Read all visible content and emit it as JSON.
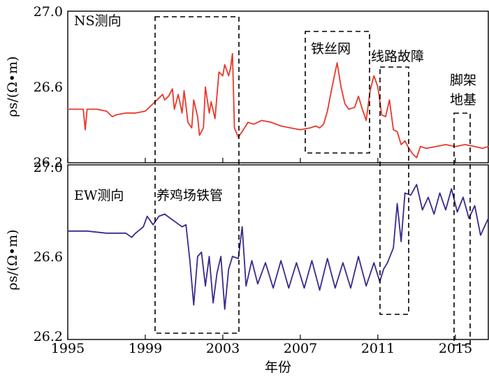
{
  "chart_data": {
    "type": "line",
    "xlabel": "年份",
    "x_ticks": [
      "1995",
      "1999",
      "2003",
      "2007",
      "2011",
      "2015"
    ],
    "xlim": [
      1995,
      2016.7
    ],
    "panels": [
      {
        "label": "NS测向",
        "ylabel": "ρs/(Ω•m)",
        "ylim": [
          26.2,
          27.0
        ],
        "y_ticks": [
          "27.0",
          "26.6",
          "26.2"
        ],
        "color": "#e8382a",
        "series": [
          {
            "points": [
              [
                1995.0,
                26.48
              ],
              [
                1995.5,
                26.48
              ],
              [
                1995.8,
                26.48
              ],
              [
                1995.9,
                26.37
              ],
              [
                1996.0,
                26.48
              ],
              [
                1996.5,
                26.48
              ],
              [
                1997.0,
                26.47
              ],
              [
                1997.3,
                26.44
              ],
              [
                1997.5,
                26.45
              ],
              [
                1998.0,
                26.46
              ],
              [
                1998.5,
                26.46
              ],
              [
                1999.0,
                26.47
              ],
              [
                1999.9,
                26.56
              ],
              [
                2000.0,
                26.53
              ],
              [
                2000.2,
                26.55
              ],
              [
                2000.4,
                26.59
              ],
              [
                2000.5,
                26.48
              ],
              [
                2000.7,
                26.56
              ],
              [
                2000.9,
                26.46
              ],
              [
                2001.0,
                26.58
              ],
              [
                2001.1,
                26.5
              ],
              [
                2001.2,
                26.41
              ],
              [
                2001.4,
                26.38
              ],
              [
                2001.5,
                26.53
              ],
              [
                2001.7,
                26.44
              ],
              [
                2001.8,
                26.34
              ],
              [
                2002.0,
                26.38
              ],
              [
                2002.1,
                26.6
              ],
              [
                2002.3,
                26.46
              ],
              [
                2002.4,
                26.52
              ],
              [
                2002.6,
                26.43
              ],
              [
                2002.8,
                26.68
              ],
              [
                2003.0,
                26.66
              ],
              [
                2003.1,
                26.72
              ],
              [
                2003.3,
                26.66
              ],
              [
                2003.4,
                26.7
              ],
              [
                2003.5,
                26.78
              ],
              [
                2003.6,
                26.38
              ],
              [
                2003.8,
                26.33
              ],
              [
                2004.0,
                26.36
              ],
              [
                2004.3,
                26.41
              ],
              [
                2004.6,
                26.4
              ],
              [
                2005.0,
                26.42
              ],
              [
                2005.5,
                26.41
              ],
              [
                2006.0,
                26.39
              ],
              [
                2006.5,
                26.38
              ],
              [
                2007.0,
                26.37
              ],
              [
                2007.5,
                26.38
              ],
              [
                2007.8,
                26.39
              ],
              [
                2008.0,
                26.38
              ],
              [
                2008.2,
                26.4
              ],
              [
                2008.4,
                26.47
              ],
              [
                2008.6,
                26.58
              ],
              [
                2008.8,
                26.68
              ],
              [
                2008.9,
                26.73
              ],
              [
                2009.1,
                26.6
              ],
              [
                2009.3,
                26.51
              ],
              [
                2009.5,
                26.48
              ],
              [
                2009.8,
                26.49
              ],
              [
                2010.0,
                26.55
              ],
              [
                2010.2,
                26.48
              ],
              [
                2010.4,
                26.42
              ],
              [
                2010.6,
                26.58
              ],
              [
                2010.8,
                26.66
              ],
              [
                2011.0,
                26.6
              ],
              [
                2011.2,
                26.45
              ],
              [
                2011.4,
                26.44
              ],
              [
                2011.6,
                26.53
              ],
              [
                2011.8,
                26.37
              ],
              [
                2012.0,
                26.36
              ],
              [
                2012.2,
                26.29
              ],
              [
                2012.4,
                26.31
              ],
              [
                2012.6,
                26.27
              ],
              [
                2012.8,
                26.24
              ],
              [
                2013.0,
                26.22
              ],
              [
                2013.2,
                26.28
              ],
              [
                2013.5,
                26.27
              ],
              [
                2014.0,
                26.28
              ],
              [
                2014.5,
                26.29
              ],
              [
                2015.0,
                26.28
              ],
              [
                2015.5,
                26.29
              ],
              [
                2016.0,
                26.28
              ],
              [
                2016.4,
                26.27
              ],
              [
                2016.7,
                26.28
              ]
            ]
          }
        ]
      },
      {
        "label": "EW测向",
        "ylabel": "ρs/(Ω•m)",
        "ylim": [
          26.2,
          27.0
        ],
        "y_ticks": [
          "27.0",
          "26.6",
          "26.2"
        ],
        "color": "#3a2a8c",
        "series": [
          {
            "points": [
              [
                1995.0,
                26.7
              ],
              [
                1996.0,
                26.7
              ],
              [
                1997.0,
                26.69
              ],
              [
                1998.0,
                26.69
              ],
              [
                1998.3,
                26.67
              ],
              [
                1998.5,
                26.69
              ],
              [
                1998.9,
                26.72
              ],
              [
                1999.1,
                26.77
              ],
              [
                1999.4,
                26.73
              ],
              [
                1999.7,
                26.77
              ],
              [
                2000.0,
                26.78
              ],
              [
                2000.3,
                26.76
              ],
              [
                2000.6,
                26.74
              ],
              [
                2000.9,
                26.72
              ],
              [
                2001.1,
                26.73
              ],
              [
                2001.3,
                26.56
              ],
              [
                2001.5,
                26.35
              ],
              [
                2001.7,
                26.58
              ],
              [
                2001.9,
                26.6
              ],
              [
                2002.1,
                26.44
              ],
              [
                2002.3,
                26.58
              ],
              [
                2002.5,
                26.36
              ],
              [
                2002.7,
                26.5
              ],
              [
                2002.9,
                26.58
              ],
              [
                2003.1,
                26.33
              ],
              [
                2003.3,
                26.52
              ],
              [
                2003.5,
                26.58
              ],
              [
                2003.8,
                26.57
              ],
              [
                2004.0,
                26.72
              ],
              [
                2004.2,
                26.44
              ],
              [
                2004.5,
                26.56
              ],
              [
                2004.8,
                26.45
              ],
              [
                2005.2,
                26.55
              ],
              [
                2005.6,
                26.43
              ],
              [
                2006.0,
                26.56
              ],
              [
                2006.4,
                26.43
              ],
              [
                2006.8,
                26.55
              ],
              [
                2007.2,
                26.43
              ],
              [
                2007.6,
                26.56
              ],
              [
                2008.0,
                26.42
              ],
              [
                2008.4,
                26.57
              ],
              [
                2008.8,
                26.43
              ],
              [
                2009.2,
                26.55
              ],
              [
                2009.6,
                26.43
              ],
              [
                2010.0,
                26.58
              ],
              [
                2010.4,
                26.44
              ],
              [
                2010.8,
                26.55
              ],
              [
                2011.1,
                26.46
              ],
              [
                2011.3,
                26.52
              ],
              [
                2011.5,
                26.55
              ],
              [
                2011.8,
                26.62
              ],
              [
                2012.0,
                26.83
              ],
              [
                2012.2,
                26.65
              ],
              [
                2012.4,
                26.88
              ],
              [
                2012.7,
                26.87
              ],
              [
                2013.0,
                26.92
              ],
              [
                2013.3,
                26.8
              ],
              [
                2013.6,
                26.86
              ],
              [
                2013.9,
                26.78
              ],
              [
                2014.2,
                26.88
              ],
              [
                2014.5,
                26.8
              ],
              [
                2014.8,
                26.9
              ],
              [
                2015.1,
                26.79
              ],
              [
                2015.4,
                26.86
              ],
              [
                2015.7,
                26.76
              ],
              [
                2016.0,
                26.82
              ],
              [
                2016.3,
                26.68
              ],
              [
                2016.7,
                26.76
              ]
            ]
          }
        ]
      }
    ],
    "annotations": [
      {
        "label": "养鸡场铁管",
        "x_range": [
          1999.6,
          2004.1
        ],
        "y_range": [
          26.22,
          26.97
        ],
        "panel_span": "both"
      },
      {
        "label": "铁丝网",
        "x_range": [
          2007.7,
          2010.9
        ],
        "y_range": [
          26.26,
          26.89
        ],
        "panel": 0
      },
      {
        "label": "线路故障",
        "x_range": [
          2011.5,
          2013.0
        ],
        "y_range": [
          26.34,
          26.7
        ],
        "panel_span": "both"
      },
      {
        "label": "脚架\n地基",
        "x_range": [
          2015.3,
          2016.1
        ],
        "y_range": [
          26.22,
          26.47
        ],
        "panel_span": "both"
      }
    ]
  }
}
